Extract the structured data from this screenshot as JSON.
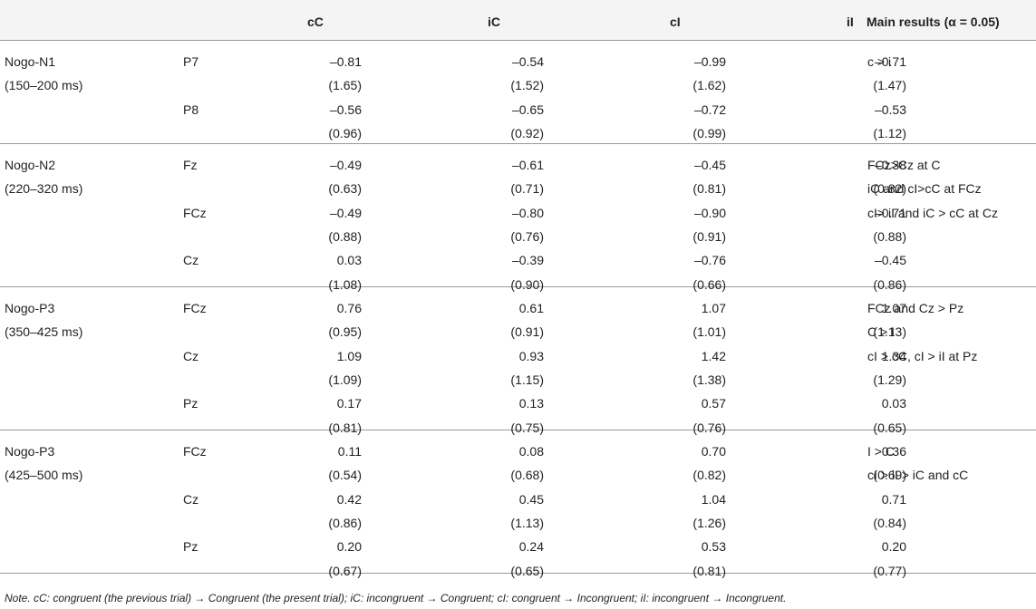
{
  "table": {
    "headers": [
      "",
      "",
      "cC",
      "iC",
      "cI",
      "iI",
      "Main results (α = 0.05)"
    ],
    "groups": [
      {
        "component": "Nogo-N1",
        "window": "(150–200 ms)",
        "electrodes": [
          {
            "name": "P7",
            "means": [
              "–0.81",
              "–0.54",
              "–0.99",
              "–0.71"
            ],
            "sds": [
              "(1.65)",
              "(1.52)",
              "(1.62)",
              "(1.47)"
            ]
          },
          {
            "name": "P8",
            "means": [
              "–0.56",
              "–0.65",
              "–0.72",
              "–0.53"
            ],
            "sds": [
              "(0.96)",
              "(0.92)",
              "(0.99)",
              "(1.12)"
            ]
          }
        ],
        "results": [
          "c > i"
        ]
      },
      {
        "component": "Nogo-N2",
        "window": "(220–320 ms)",
        "electrodes": [
          {
            "name": "Fz",
            "means": [
              "–0.49",
              "–0.61",
              "–0.45",
              "–0.38"
            ],
            "sds": [
              "(0.63)",
              "(0.71)",
              "(0.81)",
              "(0.82)"
            ]
          },
          {
            "name": "FCz",
            "means": [
              "–0.49",
              "–0.80",
              "–0.90",
              "–0.71"
            ],
            "sds": [
              "(0.88)",
              "(0.76)",
              "(0.91)",
              "(0.88)"
            ]
          },
          {
            "name": "Cz",
            "means": [
              "0.03",
              "–0.39",
              "–0.76",
              "–0.45"
            ],
            "sds": [
              "(1.08)",
              "(0.90)",
              "(0.66)",
              "(0.86)"
            ]
          }
        ],
        "results": [
          "FCz>Cz at C",
          "iC and cI>cC at FCz",
          "cI> iI and iC > cC at Cz"
        ]
      },
      {
        "component": "Nogo-P3",
        "window": "(350–425 ms)",
        "electrodes": [
          {
            "name": "FCz",
            "means": [
              "0.76",
              "0.61",
              "1.07",
              "1.07"
            ],
            "sds": [
              "(0.95)",
              "(0.91)",
              "(1.01)",
              "(1.13)"
            ]
          },
          {
            "name": "Cz",
            "means": [
              "1.09",
              "0.93",
              "1.42",
              "1.34"
            ],
            "sds": [
              "(1.09)",
              "(1.15)",
              "(1.38)",
              "(1.29)"
            ]
          },
          {
            "name": "Pz",
            "means": [
              "0.17",
              "0.13",
              "0.57",
              "0.03"
            ],
            "sds": [
              "(0.81)",
              "(0.75)",
              "(0.76)",
              "(0.65)"
            ]
          }
        ],
        "results": [
          "FCz and Cz > Pz",
          "C > I",
          "cI > cC, cI > iI at Pz"
        ]
      },
      {
        "component": "Nogo-P3",
        "window": "(425–500 ms)",
        "electrodes": [
          {
            "name": "FCz",
            "means": [
              "0.11",
              "0.08",
              "0.70",
              "0.36"
            ],
            "sds": [
              "(0.54)",
              "(0.68)",
              "(0.82)",
              "(0.69)"
            ]
          },
          {
            "name": "Cz",
            "means": [
              "0.42",
              "0.45",
              "1.04",
              "0.71"
            ],
            "sds": [
              "(0.86)",
              "(1.13)",
              "(1.26)",
              "(0.84)"
            ]
          },
          {
            "name": "Pz",
            "means": [
              "0.20",
              "0.24",
              "0.53",
              "0.20"
            ],
            "sds": [
              "(0.67)",
              "(0.65)",
              "(0.81)",
              "(0.77)"
            ]
          }
        ],
        "results": [
          "I > C",
          "cI > iI > iC and cC"
        ]
      }
    ]
  },
  "note": "Note. cC: congruent (the previous trial) → Congruent (the present trial); iC: incongruent → Congruent; cI: congruent → Incongruent; iI: incongruent → Incongruent."
}
